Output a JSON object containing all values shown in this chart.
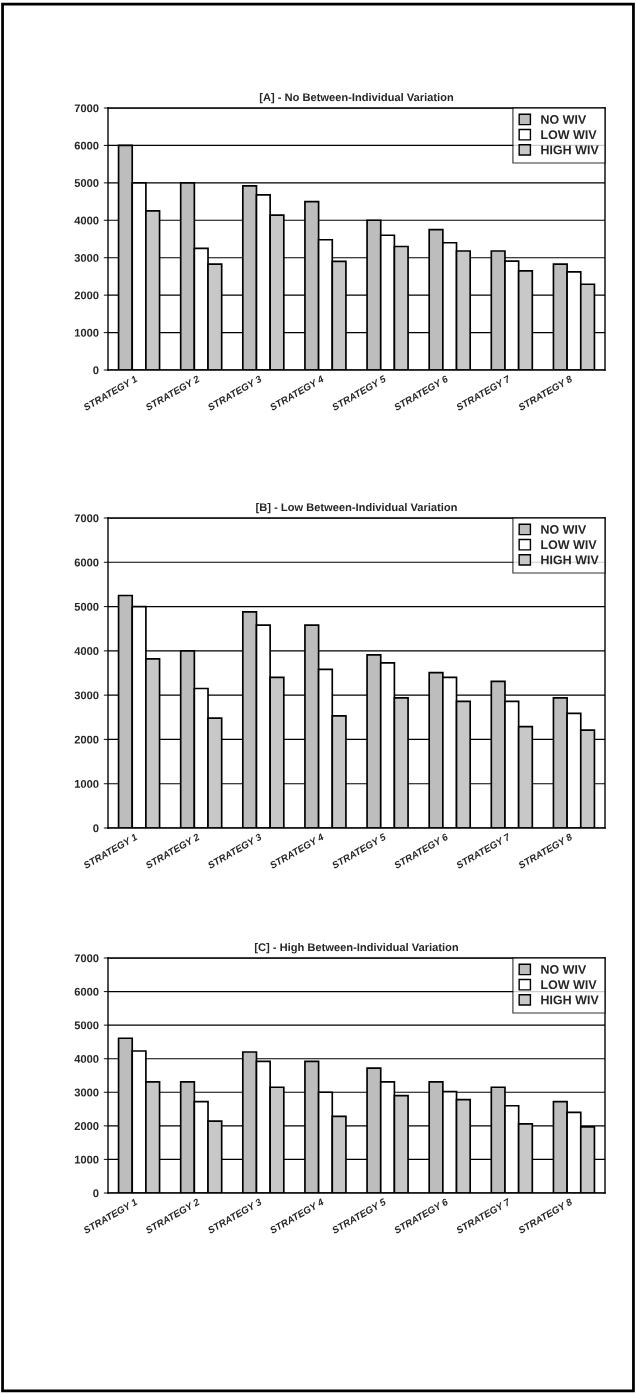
{
  "chart_data": [
    {
      "type": "bar",
      "title": "[A] - No Between-Individual Variation",
      "categories": [
        "STRATEGY 1",
        "STRATEGY 2",
        "STRATEGY 3",
        "STRATEGY 4",
        "STRATEGY 5",
        "STRATEGY 6",
        "STRATEGY 7",
        "STRATEGY 8"
      ],
      "series": [
        {
          "name": "NO WIV",
          "color": "#bdbdbd",
          "values": [
            6000,
            5000,
            4920,
            4500,
            4000,
            3750,
            3180,
            2830
          ]
        },
        {
          "name": "LOW WIV",
          "color": "#ffffff",
          "values": [
            5000,
            3250,
            4680,
            3480,
            3600,
            3400,
            2910,
            2620
          ]
        },
        {
          "name": "HIGH WIV",
          "color": "#c8c8c8",
          "values": [
            4250,
            2830,
            4140,
            2900,
            3300,
            3180,
            2650,
            2290
          ]
        }
      ],
      "ylim": [
        0,
        7000
      ],
      "yticks": [
        0,
        1000,
        2000,
        3000,
        4000,
        5000,
        6000,
        7000
      ],
      "grid": "y",
      "legend": "top right"
    },
    {
      "type": "bar",
      "title": "[B] - Low Between-Individual Variation",
      "categories": [
        "STRATEGY 1",
        "STRATEGY 2",
        "STRATEGY 3",
        "STRATEGY 4",
        "STRATEGY 5",
        "STRATEGY 6",
        "STRATEGY 7",
        "STRATEGY 8"
      ],
      "series": [
        {
          "name": "NO WIV",
          "color": "#bdbdbd",
          "values": [
            5250,
            4000,
            4880,
            4580,
            3910,
            3510,
            3310,
            2940
          ]
        },
        {
          "name": "LOW WIV",
          "color": "#ffffff",
          "values": [
            5000,
            3150,
            4580,
            3580,
            3730,
            3400,
            2860,
            2590
          ]
        },
        {
          "name": "HIGH WIV",
          "color": "#c8c8c8",
          "values": [
            3820,
            2480,
            3400,
            2530,
            2940,
            2860,
            2290,
            2210
          ]
        }
      ],
      "ylim": [
        0,
        7000
      ],
      "yticks": [
        0,
        1000,
        2000,
        3000,
        4000,
        5000,
        6000,
        7000
      ],
      "grid": "y",
      "legend": "top right"
    },
    {
      "type": "bar",
      "title": "[C] - High Between-Individual Variation",
      "categories": [
        "STRATEGY 1",
        "STRATEGY 2",
        "STRATEGY 3",
        "STRATEGY 4",
        "STRATEGY 5",
        "STRATEGY 6",
        "STRATEGY 7",
        "STRATEGY 8"
      ],
      "series": [
        {
          "name": "NO WIV",
          "color": "#bdbdbd",
          "values": [
            4610,
            3310,
            4200,
            3920,
            3720,
            3310,
            3150,
            2720
          ]
        },
        {
          "name": "LOW WIV",
          "color": "#ffffff",
          "values": [
            4230,
            2720,
            3920,
            3000,
            3310,
            3020,
            2600,
            2400
          ]
        },
        {
          "name": "HIGH WIV",
          "color": "#c8c8c8",
          "values": [
            3310,
            2140,
            3150,
            2280,
            2900,
            2780,
            2060,
            1970
          ]
        }
      ],
      "ylim": [
        0,
        7000
      ],
      "yticks": [
        0,
        1000,
        2000,
        3000,
        4000,
        5000,
        6000,
        7000
      ],
      "grid": "y",
      "legend": "top right"
    }
  ]
}
